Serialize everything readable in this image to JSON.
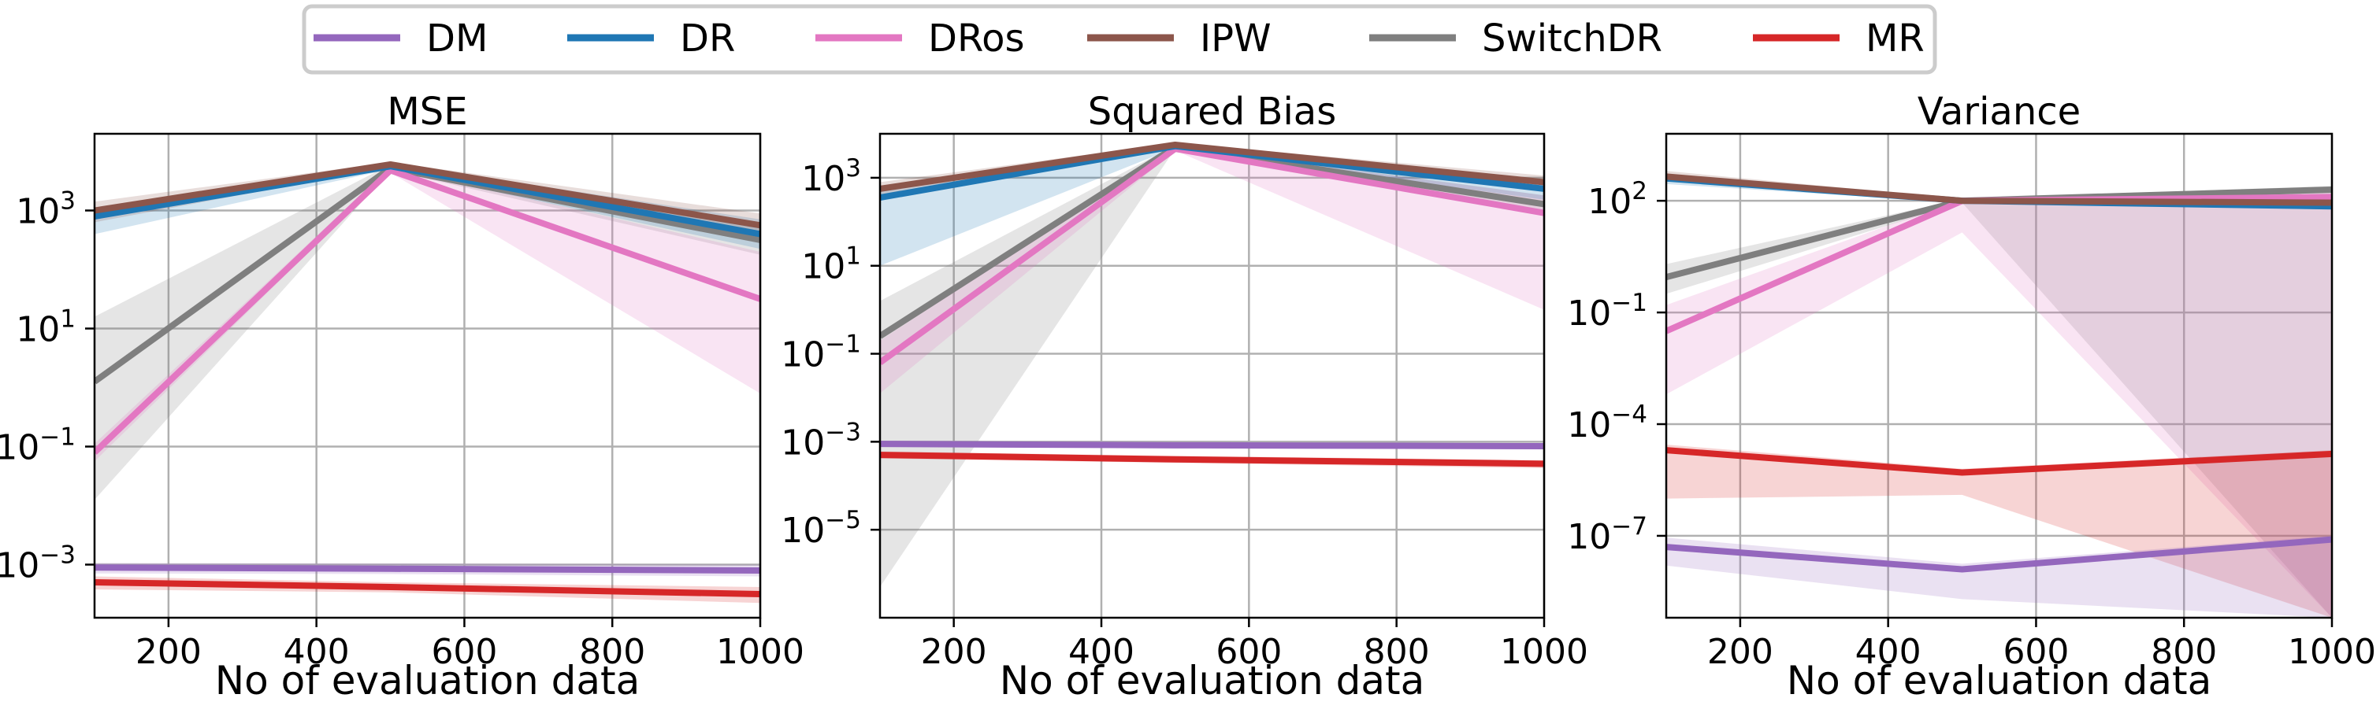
{
  "legend": {
    "placement": "top-center",
    "entries": [
      {
        "name": "DM",
        "color": "#9467bd"
      },
      {
        "name": "DR",
        "color": "#1f77b4"
      },
      {
        "name": "DRos",
        "color": "#e377c2"
      },
      {
        "name": "IPW",
        "color": "#8c564b"
      },
      {
        "name": "SwitchDR",
        "color": "#7f7f7f"
      },
      {
        "name": "MR",
        "color": "#d62728"
      }
    ]
  },
  "chart_data": [
    {
      "type": "line",
      "title": "MSE",
      "xlabel": "No of evaluation data",
      "ylabel": "",
      "yscale": "log",
      "xlim": [
        100,
        1000
      ],
      "ylim_log10": [
        -3.9,
        4.3
      ],
      "xticks": [
        200,
        400,
        600,
        800,
        1000
      ],
      "yticks": [
        {
          "value": -3,
          "label": "10",
          "exp": "−3"
        },
        {
          "value": -1,
          "label": "10",
          "exp": "−1"
        },
        {
          "value": 1,
          "label": "10",
          "exp": "1"
        },
        {
          "value": 3,
          "label": "10",
          "exp": "3"
        }
      ],
      "grid": true,
      "x": [
        100,
        500,
        1000
      ],
      "series": [
        {
          "name": "DM",
          "log10_values": [
            -3.05,
            -3.07,
            -3.1
          ],
          "band_log10": [
            [
              -3.15,
              -2.97
            ],
            [
              -3.16,
              -2.98
            ],
            [
              -3.2,
              -3.0
            ]
          ]
        },
        {
          "name": "MR",
          "log10_values": [
            -3.3,
            -3.38,
            -3.5
          ],
          "band_log10": [
            [
              -3.42,
              -3.2
            ],
            [
              -3.47,
              -3.3
            ],
            [
              -3.65,
              -3.38
            ]
          ]
        },
        {
          "name": "DR",
          "log10_values": [
            2.9,
            3.75,
            2.6
          ],
          "band_log10": [
            [
              2.6,
              3.05
            ],
            [
              3.7,
              3.8
            ],
            [
              2.35,
              2.85
            ]
          ]
        },
        {
          "name": "IPW",
          "log10_values": [
            3.0,
            3.78,
            2.75
          ],
          "band_log10": [
            [
              2.8,
              3.15
            ],
            [
              3.74,
              3.82
            ],
            [
              2.5,
              2.95
            ]
          ]
        },
        {
          "name": "SwitchDR",
          "log10_values": [
            0.1,
            3.72,
            2.5
          ],
          "band_log10": [
            [
              -1.9,
              1.2
            ],
            [
              3.68,
              3.78
            ],
            [
              2.25,
              2.8
            ]
          ]
        },
        {
          "name": "DRos",
          "log10_values": [
            -1.1,
            3.68,
            1.5
          ],
          "band_log10": [
            [
              -1.25,
              -0.95
            ],
            [
              3.64,
              3.74
            ],
            [
              -0.1,
              2.3
            ]
          ]
        }
      ]
    },
    {
      "type": "line",
      "title": "Squared Bias",
      "xlabel": "No of evaluation data",
      "ylabel": "",
      "yscale": "log",
      "xlim": [
        100,
        1000
      ],
      "ylim_log10": [
        -7.0,
        4.0
      ],
      "xticks": [
        200,
        400,
        600,
        800,
        1000
      ],
      "yticks": [
        {
          "value": -5,
          "label": "10",
          "exp": "−5"
        },
        {
          "value": -3,
          "label": "10",
          "exp": "−3"
        },
        {
          "value": -1,
          "label": "10",
          "exp": "−1"
        },
        {
          "value": 1,
          "label": "10",
          "exp": "1"
        },
        {
          "value": 3,
          "label": "10",
          "exp": "3"
        }
      ],
      "grid": true,
      "x": [
        100,
        500,
        1000
      ],
      "series": [
        {
          "name": "DM",
          "log10_values": [
            -3.05,
            -3.08,
            -3.1
          ],
          "band_log10": [
            [
              -3.12,
              -2.98
            ],
            [
              -3.14,
              -3.02
            ],
            [
              -3.16,
              -3.04
            ]
          ]
        },
        {
          "name": "MR",
          "log10_values": [
            -3.3,
            -3.4,
            -3.5
          ],
          "band_log10": [
            [
              -3.38,
              -3.22
            ],
            [
              -3.48,
              -3.32
            ],
            [
              -3.6,
              -3.42
            ]
          ]
        },
        {
          "name": "DR",
          "log10_values": [
            2.55,
            3.72,
            2.75
          ],
          "band_log10": [
            [
              1.0,
              2.75
            ],
            [
              3.68,
              3.76
            ],
            [
              2.5,
              2.95
            ]
          ]
        },
        {
          "name": "IPW",
          "log10_values": [
            2.75,
            3.75,
            2.9
          ],
          "band_log10": [
            [
              2.6,
              2.9
            ],
            [
              3.71,
              3.79
            ],
            [
              2.7,
              3.05
            ]
          ]
        },
        {
          "name": "SwitchDR",
          "log10_values": [
            -0.6,
            3.7,
            2.4
          ],
          "band_log10": [
            [
              -6.3,
              0.2
            ],
            [
              3.66,
              3.74
            ],
            [
              2.2,
              2.6
            ]
          ]
        },
        {
          "name": "DRos",
          "log10_values": [
            -1.2,
            3.66,
            2.2
          ],
          "band_log10": [
            [
              -1.9,
              -0.7
            ],
            [
              3.62,
              3.7
            ],
            [
              0.0,
              2.6
            ]
          ]
        }
      ]
    },
    {
      "type": "line",
      "title": "Variance",
      "xlabel": "No of evaluation data",
      "ylabel": "",
      "yscale": "log",
      "xlim": [
        100,
        1000
      ],
      "ylim_log10": [
        -9.2,
        3.8
      ],
      "xticks": [
        200,
        400,
        600,
        800,
        1000
      ],
      "yticks": [
        {
          "value": -7,
          "label": "10",
          "exp": "−7"
        },
        {
          "value": -4,
          "label": "10",
          "exp": "−4"
        },
        {
          "value": -1,
          "label": "10",
          "exp": "−1"
        },
        {
          "value": 2,
          "label": "10",
          "exp": "2"
        }
      ],
      "grid": true,
      "x": [
        100,
        500,
        1000
      ],
      "series": [
        {
          "name": "DM",
          "log10_values": [
            -7.3,
            -7.9,
            -7.1
          ],
          "band_log10": [
            [
              -7.8,
              -7.05
            ],
            [
              -8.7,
              -7.75
            ],
            [
              -9.2,
              -7.0
            ]
          ]
        },
        {
          "name": "MR",
          "log10_values": [
            -4.7,
            -5.3,
            -4.8
          ],
          "band_log10": [
            [
              -6.0,
              -4.55
            ],
            [
              -5.9,
              -5.2
            ],
            [
              -9.2,
              -4.7
            ]
          ]
        },
        {
          "name": "DR",
          "log10_values": [
            2.6,
            2.0,
            1.85
          ],
          "band_log10": [
            [
              2.45,
              2.7
            ],
            [
              1.95,
              2.05
            ],
            [
              1.8,
              1.95
            ]
          ]
        },
        {
          "name": "IPW",
          "log10_values": [
            2.65,
            2.0,
            1.95
          ],
          "band_log10": [
            [
              2.55,
              2.8
            ],
            [
              1.95,
              2.05
            ],
            [
              1.85,
              2.05
            ]
          ]
        },
        {
          "name": "SwitchDR",
          "log10_values": [
            -0.05,
            2.0,
            2.3
          ],
          "band_log10": [
            [
              -0.5,
              0.3
            ],
            [
              1.95,
              2.05
            ],
            [
              -9.2,
              2.4
            ]
          ]
        },
        {
          "name": "DRos",
          "log10_values": [
            -1.5,
            2.0,
            2.1
          ],
          "band_log10": [
            [
              -3.2,
              -0.8
            ],
            [
              1.15,
              2.05
            ],
            [
              -9.2,
              2.3
            ]
          ]
        }
      ]
    }
  ]
}
